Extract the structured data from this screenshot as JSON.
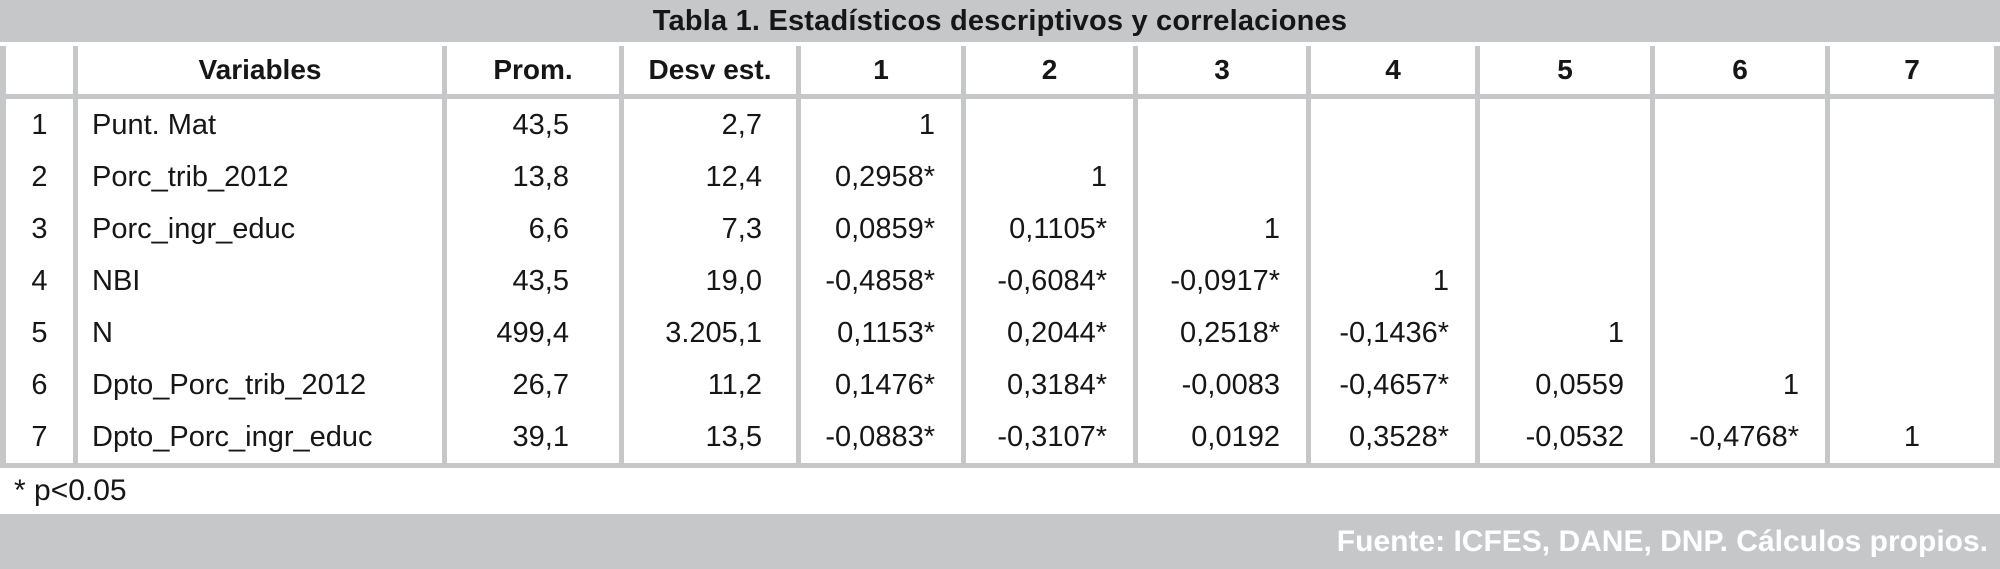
{
  "title": "Tabla 1.  Estadísticos descriptivos y correlaciones",
  "table": {
    "headers": [
      "",
      "Variables",
      "Prom.",
      "Desv est.",
      "1",
      "2",
      "3",
      "4",
      "5",
      "6",
      "7"
    ],
    "rows": [
      {
        "num": "1",
        "variable": "Punt. Mat",
        "prom": "43,5",
        "desv": "2,7",
        "corr": [
          "1",
          "",
          "",
          "",
          "",
          "",
          ""
        ]
      },
      {
        "num": "2",
        "variable": "Porc_trib_2012",
        "prom": "13,8",
        "desv": "12,4",
        "corr": [
          "0,2958*",
          "1",
          "",
          "",
          "",
          "",
          ""
        ]
      },
      {
        "num": "3",
        "variable": "Porc_ingr_educ",
        "prom": "6,6",
        "desv": "7,3",
        "corr": [
          "0,0859*",
          "0,1105*",
          "1",
          "",
          "",
          "",
          ""
        ]
      },
      {
        "num": "4",
        "variable": "NBI",
        "prom": "43,5",
        "desv": "19,0",
        "corr": [
          "-0,4858*",
          "-0,6084*",
          "-0,0917*",
          "1",
          "",
          "",
          ""
        ]
      },
      {
        "num": "5",
        "variable": "N",
        "prom": "499,4",
        "desv": "3.205,1",
        "corr": [
          "0,1153*",
          "0,2044*",
          "0,2518*",
          "-0,1436*",
          "1",
          "",
          ""
        ]
      },
      {
        "num": "6",
        "variable": "Dpto_Porc_trib_2012",
        "prom": "26,7",
        "desv": "11,2",
        "corr": [
          "0,1476*",
          "0,3184*",
          "-0,0083",
          "-0,4657*",
          "0,0559",
          "1",
          ""
        ]
      },
      {
        "num": "7",
        "variable": "Dpto_Porc_ingr_educ",
        "prom": "39,1",
        "desv": "13,5",
        "corr": [
          "-0,0883*",
          "-0,3107*",
          "0,0192",
          "0,3528*",
          "-0,0532",
          "-0,4768*",
          "1"
        ]
      }
    ],
    "footnote": "* p<0.05"
  },
  "source": "Fuente: ICFES, DANE, DNP. Cálculos propios.",
  "colors": {
    "bar_gray": "#c5c7c9",
    "gridline_gray": "#c5c7c9",
    "text": "#161616",
    "source_text": "#ffffff"
  }
}
